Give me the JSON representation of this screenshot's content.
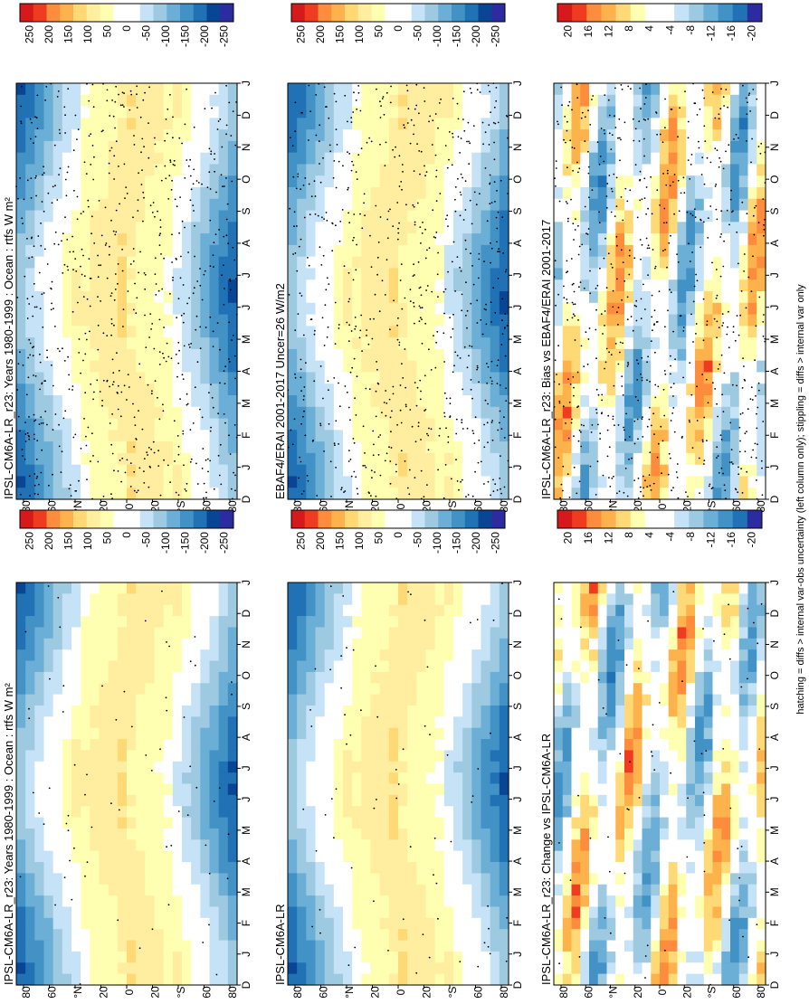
{
  "panels": [
    {
      "title": "IPSL-CM6A-LR_r23: Years 1980-1999 : Ocean : rtfs W m²",
      "kind": "clim",
      "stipple": "dense"
    },
    {
      "title": "IPSL-CM6A-LR_r23: Years 1980-1999 : Ocean : rtfs W m²",
      "kind": "clim",
      "stipple": "sparse"
    },
    {
      "title": "EBAF4/ERAI 2001-2017 Uncer=26 W/m2",
      "kind": "clim",
      "stipple": "dense"
    },
    {
      "title": "IPSL-CM6A-LR",
      "kind": "clim",
      "stipple": "sparse"
    },
    {
      "title": "IPSL-CM6A-LR_r23: Bias vs EBAF4/ERAI 2001-2017",
      "kind": "bias",
      "stipple": "dense"
    },
    {
      "title": "IPSL-CM6A-LR_r23: Change vs IPSL-CM6A-LR",
      "kind": "change",
      "stipple": "sparse"
    }
  ],
  "month_labels": [
    "D",
    "J",
    "F",
    "M",
    "A",
    "M",
    "J",
    "J",
    "A",
    "S",
    "O",
    "N",
    "D",
    "J"
  ],
  "lat_labels": [
    "80",
    "60",
    "°N",
    "20",
    "0",
    "20",
    "°S",
    "60",
    "80"
  ],
  "colorbars": {
    "clim": [
      "250",
      "200",
      "150",
      "100",
      "50",
      "0",
      "-50",
      "-100",
      "-150",
      "-200",
      "-250"
    ],
    "diff": [
      "20",
      "16",
      "12",
      "8",
      "4",
      "-4",
      "-8",
      "-12",
      "-16",
      "-20"
    ]
  },
  "footer": "hatching = diffs > internal var-obs uncertainty (left column only); stippling = diffs > internal var only",
  "colors": {
    "clim": [
      "#d7191c",
      "#f03b20",
      "#fd8d3c",
      "#feb24c",
      "#fed976",
      "#ffeda0",
      "#ffffb2",
      "#ffffff",
      "#ffffff",
      "#c6e2f7",
      "#9ecae1",
      "#6baed6",
      "#4292c6",
      "#2171b5",
      "#084594",
      "#2c2ca0"
    ],
    "diff": [
      "#d7191c",
      "#f03b20",
      "#fd8d3c",
      "#feb24c",
      "#fed976",
      "#ffffb2",
      "#ffffff",
      "#ffffff",
      "#c6e2f7",
      "#9ecae1",
      "#6baed6",
      "#4292c6",
      "#2171b5",
      "#2c2ca0"
    ]
  }
}
